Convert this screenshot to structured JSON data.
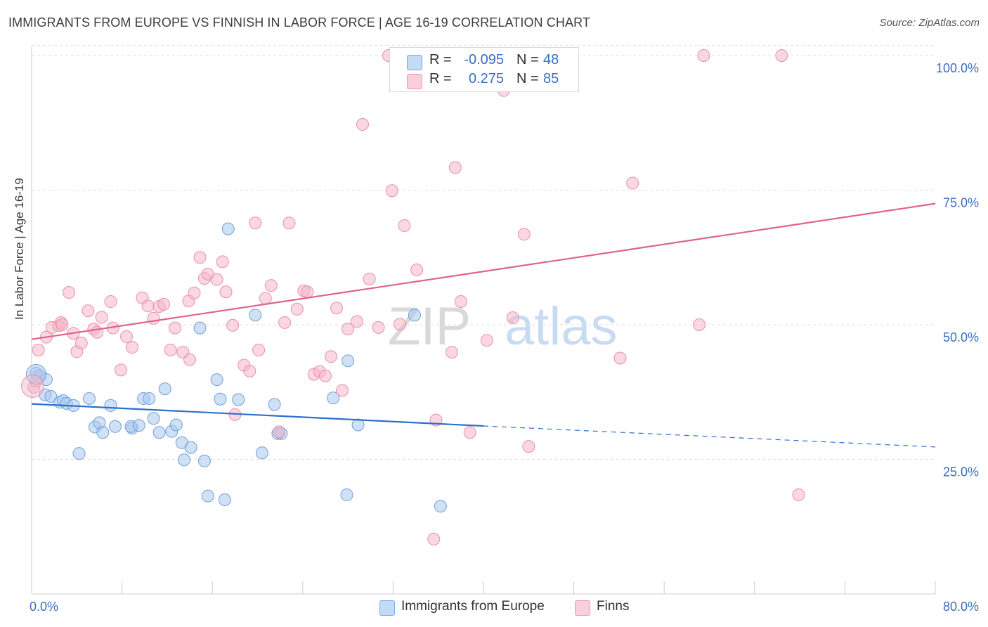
{
  "title": "IMMIGRANTS FROM EUROPE VS FINNISH IN LABOR FORCE | AGE 16-19 CORRELATION CHART",
  "source": "Source: ZipAtlas.com",
  "watermark": {
    "zip": "ZIP",
    "atlas": "atlas"
  },
  "legend_top": {
    "rows": [
      {
        "r_label": "R =",
        "r_value": "-0.095",
        "n_label": "N =",
        "n_value": "48",
        "color": "#a9c8ef"
      },
      {
        "r_label": "R =",
        "r_value": "0.275",
        "n_label": "N =",
        "n_value": "85",
        "color": "#f5b6c8"
      }
    ]
  },
  "legend_bottom": {
    "items": [
      {
        "label": "Immigrants from Europe",
        "color": "#a9c8ef"
      },
      {
        "label": "Finns",
        "color": "#f5b6c8"
      }
    ]
  },
  "colors": {
    "blue_fill": "#a9c8ef",
    "blue_stroke": "#6e9fdc",
    "blue_line": "#2f6fcd",
    "pink_fill": "#f5b6c8",
    "pink_stroke": "#e890aa",
    "pink_line": "#e0628f",
    "tick_label": "#3b6ec2",
    "grid": "#dddddd"
  },
  "chart_data": {
    "type": "scatter",
    "title": "IMMIGRANTS FROM EUROPE VS FINNISH IN LABOR FORCE | AGE 16-19 CORRELATION CHART",
    "xlabel": "",
    "ylabel": "In Labor Force | Age 16-19",
    "xlim": [
      0,
      80
    ],
    "ylim": [
      0,
      102
    ],
    "x_tick_labels": [
      "0.0%",
      "80.0%"
    ],
    "y_ticks": [
      25,
      50,
      75,
      100
    ],
    "y_tick_labels": [
      "25.0%",
      "50.0%",
      "75.0%",
      "100.0%"
    ],
    "grid": true,
    "legend_position": "bottom",
    "series": [
      {
        "name": "Immigrants from Europe",
        "r": -0.095,
        "n": 48,
        "trend": {
          "x0": 0,
          "y0": 35.3,
          "x1": 40,
          "y1": 31.2,
          "dash_to_x": 80,
          "dash_to_y": 27.3
        },
        "points": [
          [
            0.4,
            41.0
          ],
          [
            0.7,
            40.5
          ],
          [
            1.3,
            39.8
          ],
          [
            1.2,
            37.0
          ],
          [
            1.7,
            36.7
          ],
          [
            2.5,
            35.6
          ],
          [
            2.8,
            35.9
          ],
          [
            3.1,
            35.4
          ],
          [
            3.7,
            35.0
          ],
          [
            4.2,
            26.1
          ],
          [
            5.1,
            36.3
          ],
          [
            5.6,
            31.0
          ],
          [
            6.0,
            31.8
          ],
          [
            6.3,
            30.0
          ],
          [
            7.0,
            35.0
          ],
          [
            7.4,
            31.1
          ],
          [
            8.9,
            30.8
          ],
          [
            8.8,
            31.1
          ],
          [
            9.5,
            31.3
          ],
          [
            9.9,
            36.3
          ],
          [
            10.4,
            36.3
          ],
          [
            10.8,
            32.6
          ],
          [
            11.3,
            30.0
          ],
          [
            11.8,
            38.1
          ],
          [
            12.4,
            30.2
          ],
          [
            12.8,
            31.4
          ],
          [
            13.3,
            28.1
          ],
          [
            13.5,
            24.9
          ],
          [
            14.1,
            27.2
          ],
          [
            14.9,
            49.4
          ],
          [
            15.3,
            24.7
          ],
          [
            15.6,
            18.2
          ],
          [
            16.4,
            39.8
          ],
          [
            16.7,
            36.2
          ],
          [
            17.1,
            17.5
          ],
          [
            17.4,
            67.8
          ],
          [
            18.3,
            36.1
          ],
          [
            19.8,
            51.8
          ],
          [
            20.4,
            26.2
          ],
          [
            21.5,
            35.2
          ],
          [
            21.8,
            29.8
          ],
          [
            22.1,
            29.8
          ],
          [
            26.7,
            36.4
          ],
          [
            27.9,
            18.4
          ],
          [
            28.0,
            43.3
          ],
          [
            28.9,
            31.4
          ],
          [
            33.9,
            51.8
          ],
          [
            36.2,
            16.3
          ]
        ]
      },
      {
        "name": "Finns",
        "r": 0.275,
        "n": 85,
        "trend": {
          "x0": 0,
          "y0": 47.3,
          "x1": 80,
          "y1": 72.5
        },
        "points": [
          [
            0.2,
            38.4
          ],
          [
            0.6,
            45.3
          ],
          [
            1.3,
            47.7
          ],
          [
            1.8,
            49.5
          ],
          [
            2.4,
            49.8
          ],
          [
            2.6,
            50.4
          ],
          [
            2.7,
            50.0
          ],
          [
            3.3,
            56.0
          ],
          [
            3.7,
            48.4
          ],
          [
            4.0,
            45.0
          ],
          [
            4.4,
            46.6
          ],
          [
            5.0,
            52.6
          ],
          [
            5.5,
            49.2
          ],
          [
            6.2,
            51.4
          ],
          [
            7.0,
            54.3
          ],
          [
            7.2,
            49.4
          ],
          [
            7.9,
            41.6
          ],
          [
            8.4,
            47.8
          ],
          [
            8.9,
            45.8
          ],
          [
            9.8,
            55.0
          ],
          [
            10.3,
            53.5
          ],
          [
            10.8,
            51.2
          ],
          [
            11.3,
            53.4
          ],
          [
            11.7,
            53.8
          ],
          [
            12.3,
            45.3
          ],
          [
            12.7,
            49.4
          ],
          [
            13.4,
            44.9
          ],
          [
            13.9,
            54.4
          ],
          [
            14.4,
            55.9
          ],
          [
            14.9,
            62.5
          ],
          [
            15.3,
            58.6
          ],
          [
            15.6,
            59.4
          ],
          [
            16.4,
            58.4
          ],
          [
            16.9,
            61.7
          ],
          [
            17.2,
            56.1
          ],
          [
            17.8,
            49.9
          ],
          [
            18.0,
            33.3
          ],
          [
            18.8,
            42.5
          ],
          [
            19.3,
            41.4
          ],
          [
            19.8,
            68.9
          ],
          [
            20.1,
            45.3
          ],
          [
            20.7,
            54.9
          ],
          [
            21.2,
            57.3
          ],
          [
            21.9,
            30.1
          ],
          [
            22.4,
            50.4
          ],
          [
            22.8,
            68.9
          ],
          [
            23.5,
            52.9
          ],
          [
            24.1,
            56.3
          ],
          [
            24.4,
            56.1
          ],
          [
            25.0,
            40.8
          ],
          [
            25.5,
            41.3
          ],
          [
            26.0,
            40.5
          ],
          [
            26.5,
            44.1
          ],
          [
            27.0,
            53.1
          ],
          [
            27.5,
            37.8
          ],
          [
            28.0,
            49.2
          ],
          [
            28.8,
            50.6
          ],
          [
            29.3,
            87.2
          ],
          [
            29.9,
            58.5
          ],
          [
            30.7,
            49.5
          ],
          [
            31.6,
            100.0
          ],
          [
            31.9,
            74.9
          ],
          [
            32.6,
            50.1
          ],
          [
            33.0,
            68.4
          ],
          [
            34.1,
            60.2
          ],
          [
            35.6,
            10.2
          ],
          [
            35.8,
            32.3
          ],
          [
            37.2,
            44.9
          ],
          [
            37.5,
            79.2
          ],
          [
            38.0,
            54.3
          ],
          [
            38.8,
            30.0
          ],
          [
            40.3,
            47.1
          ],
          [
            41.8,
            93.5
          ],
          [
            42.6,
            51.3
          ],
          [
            43.6,
            66.8
          ],
          [
            44.0,
            27.4
          ],
          [
            52.1,
            43.8
          ],
          [
            53.2,
            76.3
          ],
          [
            59.1,
            50.0
          ],
          [
            59.5,
            100.0
          ],
          [
            66.4,
            100.0
          ],
          [
            67.9,
            18.4
          ],
          [
            0.4,
            39.5
          ],
          [
            5.8,
            48.6
          ],
          [
            14.0,
            43.5
          ]
        ]
      }
    ]
  }
}
